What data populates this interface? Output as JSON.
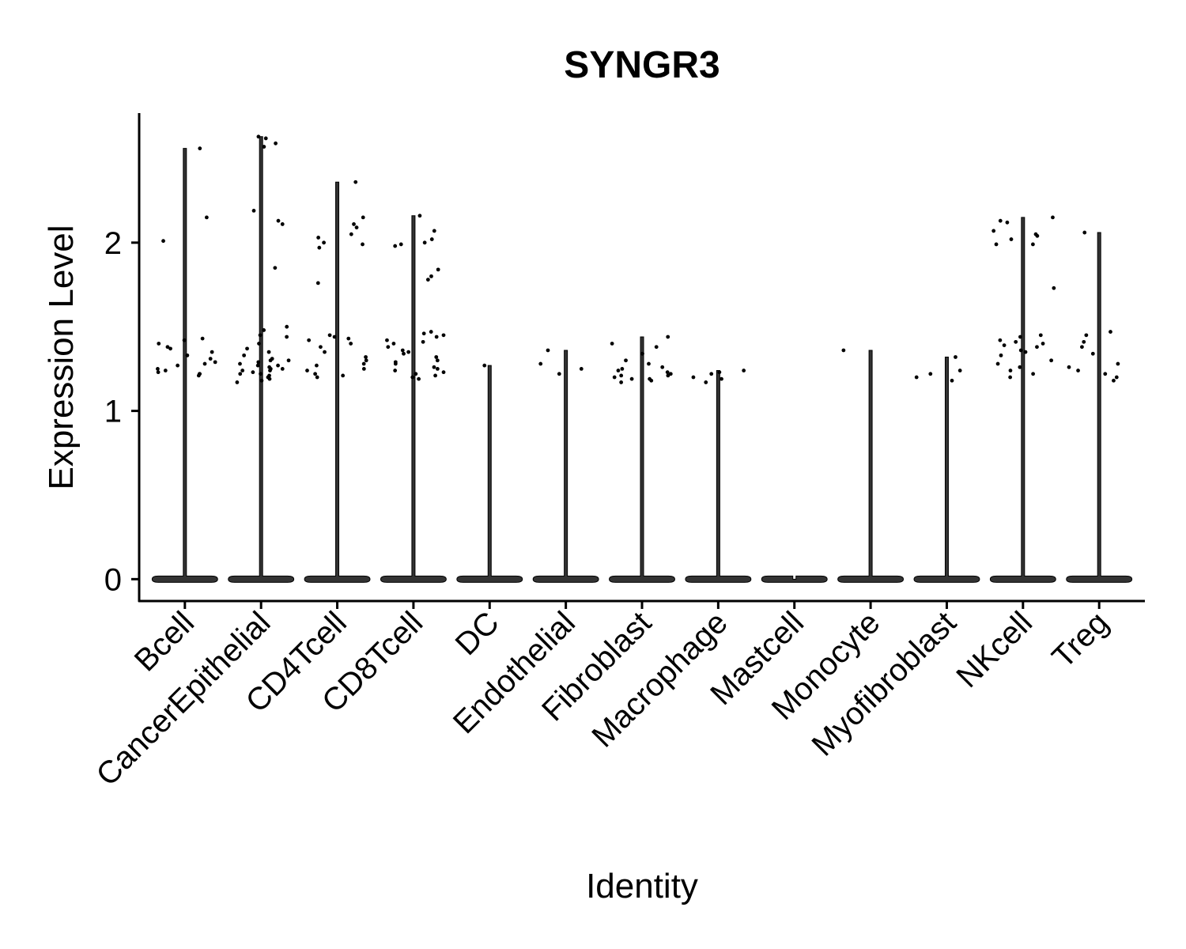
{
  "chart_data": {
    "type": "violin",
    "title": "SYNGR3",
    "x_label": "Identity",
    "y_label": "Expression Level",
    "categories": [
      "Bcell",
      "CancerEpithelial",
      "CD4Tcell",
      "CD8Tcell",
      "DC",
      "Endothelial",
      "Fibroblast",
      "Macrophage",
      "Mastcell",
      "Monocyte",
      "Myofibroblast",
      "NKcell",
      "Treg"
    ],
    "min": [
      0,
      0,
      0,
      0,
      0,
      0,
      0,
      0,
      0,
      0,
      0,
      0,
      0
    ],
    "max": [
      2.56,
      2.63,
      2.36,
      2.16,
      1.27,
      1.36,
      1.44,
      1.24,
      0,
      1.36,
      1.32,
      2.15,
      2.06
    ],
    "points": [
      [
        2.56,
        2.15,
        2.01,
        1.43,
        1.42,
        1.4,
        1.37,
        1.35,
        1.31,
        1.28,
        1.27,
        1.25,
        1.24,
        1.22,
        1.22,
        1.21,
        1.23,
        1.29,
        1.33,
        1.38
      ],
      [
        2.63,
        2.62,
        2.59,
        2.57,
        2.19,
        2.13,
        2.11,
        1.85,
        1.5,
        1.48,
        1.45,
        1.44,
        1.4,
        1.37,
        1.35,
        1.33,
        1.31,
        1.3,
        1.29,
        1.28,
        1.27,
        1.26,
        1.25,
        1.24,
        1.23,
        1.22,
        1.21,
        1.2,
        1.19,
        1.18,
        1.17,
        1.25,
        1.27,
        1.22,
        1.3,
        1.24
      ],
      [
        2.36,
        2.15,
        2.11,
        2.09,
        2.05,
        2.03,
        2.0,
        1.99,
        1.97,
        1.76,
        1.45,
        1.44,
        1.43,
        1.42,
        1.4,
        1.38,
        1.35,
        1.32,
        1.3,
        1.28,
        1.27,
        1.25,
        1.24,
        1.22,
        1.21,
        1.2
      ],
      [
        2.16,
        2.07,
        2.02,
        2.0,
        1.99,
        1.98,
        1.84,
        1.8,
        1.78,
        1.47,
        1.46,
        1.45,
        1.44,
        1.42,
        1.4,
        1.38,
        1.36,
        1.34,
        1.32,
        1.3,
        1.28,
        1.26,
        1.25,
        1.24,
        1.23,
        1.22,
        1.21,
        1.2,
        1.19,
        1.35,
        1.41,
        1.29
      ],
      [
        1.27
      ],
      [
        1.36,
        1.28,
        1.25,
        1.22
      ],
      [
        1.44,
        1.4,
        1.38,
        1.34,
        1.3,
        1.28,
        1.26,
        1.24,
        1.23,
        1.22,
        1.21,
        1.2,
        1.19,
        1.18,
        1.17,
        1.19,
        1.21,
        1.25
      ],
      [
        1.24,
        1.23,
        1.22,
        1.2,
        1.19,
        1.17
      ],
      [],
      [
        1.36
      ],
      [
        1.32,
        1.24,
        1.22,
        1.2,
        1.18
      ],
      [
        2.15,
        2.13,
        2.12,
        2.07,
        2.05,
        2.04,
        2.02,
        1.99,
        1.99,
        1.73,
        1.45,
        1.44,
        1.42,
        1.41,
        1.4,
        1.39,
        1.38,
        1.36,
        1.35,
        1.33,
        1.3,
        1.28,
        1.26,
        1.24,
        1.22,
        1.2
      ],
      [
        2.06,
        1.47,
        1.45,
        1.41,
        1.38,
        1.34,
        1.28,
        1.26,
        1.24,
        1.22,
        1.2,
        1.18
      ]
    ],
    "color": "#000000",
    "ylim": [
      -0.13,
      2.77
    ],
    "yticks": [
      0,
      1,
      2
    ]
  }
}
